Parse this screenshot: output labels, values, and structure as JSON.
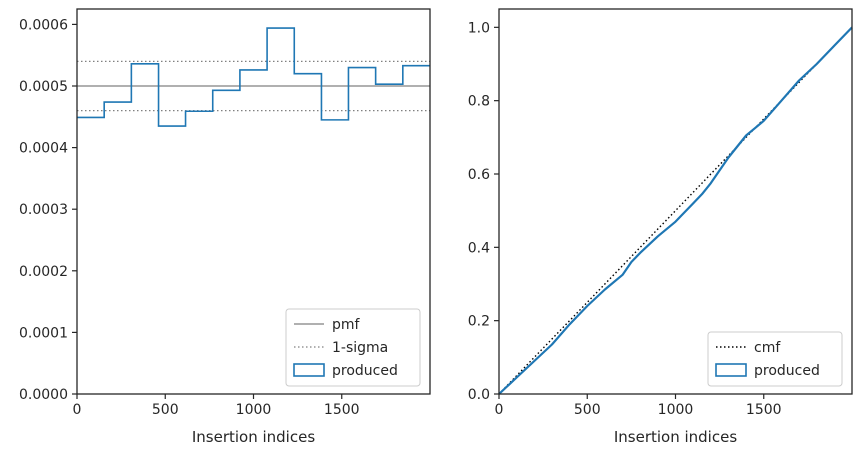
{
  "chart_data": [
    {
      "type": "line",
      "subtype": "histogram-step",
      "title": "",
      "xlabel": "Insertion indices",
      "ylabel": "",
      "xlim": [
        0,
        2000
      ],
      "ylim": [
        0,
        0.000625
      ],
      "xticks": [
        0,
        500,
        1000,
        1500
      ],
      "xtick_labels": [
        "0",
        "500",
        "1000",
        "1500"
      ],
      "yticks": [
        0,
        0.0001,
        0.0002,
        0.0003,
        0.0004,
        0.0005,
        0.0006
      ],
      "ytick_labels": [
        "0.0000",
        "0.0001",
        "0.0002",
        "0.0003",
        "0.0004",
        "0.0005",
        "0.0006"
      ],
      "grid": false,
      "legend_position": "lower-right",
      "series": [
        {
          "name": "pmf",
          "style": "solid",
          "color": "#808080",
          "x": [
            0,
            2000
          ],
          "y": [
            0.0005,
            0.0005
          ]
        },
        {
          "name": "1-sigma",
          "style": "dotted",
          "color": "#808080",
          "y_levels": [
            0.00054,
            0.00046
          ]
        },
        {
          "name": "produced",
          "style": "step",
          "color": "#1f77b4",
          "bin_edges": [
            0,
            154,
            308,
            462,
            615,
            769,
            923,
            1077,
            1231,
            1385,
            1538,
            1692,
            1846,
            2000
          ],
          "values": [
            0.000449,
            0.000474,
            0.000536,
            0.000435,
            0.000459,
            0.000493,
            0.000526,
            0.000594,
            0.00052,
            0.000445,
            0.00053,
            0.000503,
            0.000533
          ]
        }
      ]
    },
    {
      "type": "line",
      "title": "",
      "xlabel": "Insertion indices",
      "ylabel": "",
      "xlim": [
        0,
        2000
      ],
      "ylim": [
        0,
        1.05
      ],
      "xticks": [
        0,
        500,
        1000,
        1500
      ],
      "xtick_labels": [
        "0",
        "500",
        "1000",
        "1500"
      ],
      "yticks": [
        0,
        0.2,
        0.4,
        0.6,
        0.8,
        1.0
      ],
      "ytick_labels": [
        "0.0",
        "0.2",
        "0.4",
        "0.6",
        "0.8",
        "1.0"
      ],
      "grid": false,
      "legend_position": "lower-right",
      "series": [
        {
          "name": "cmf",
          "style": "dotted",
          "color": "#000000",
          "x": [
            0,
            2000
          ],
          "y": [
            0,
            1.0
          ]
        },
        {
          "name": "produced",
          "style": "solid",
          "color": "#1f77b4",
          "x": [
            0,
            100,
            200,
            300,
            400,
            500,
            600,
            700,
            750,
            800,
            900,
            1000,
            1100,
            1150,
            1200,
            1300,
            1350,
            1400,
            1450,
            1500,
            1600,
            1700,
            1800,
            1900,
            2000
          ],
          "y": [
            0,
            0.045,
            0.09,
            0.135,
            0.19,
            0.24,
            0.285,
            0.325,
            0.36,
            0.385,
            0.43,
            0.47,
            0.52,
            0.545,
            0.575,
            0.645,
            0.675,
            0.705,
            0.725,
            0.745,
            0.8,
            0.855,
            0.9,
            0.95,
            1.0
          ]
        }
      ]
    }
  ],
  "legend": {
    "left": [
      "pmf",
      "1-sigma",
      "produced"
    ],
    "right": [
      "cmf",
      "produced"
    ]
  }
}
